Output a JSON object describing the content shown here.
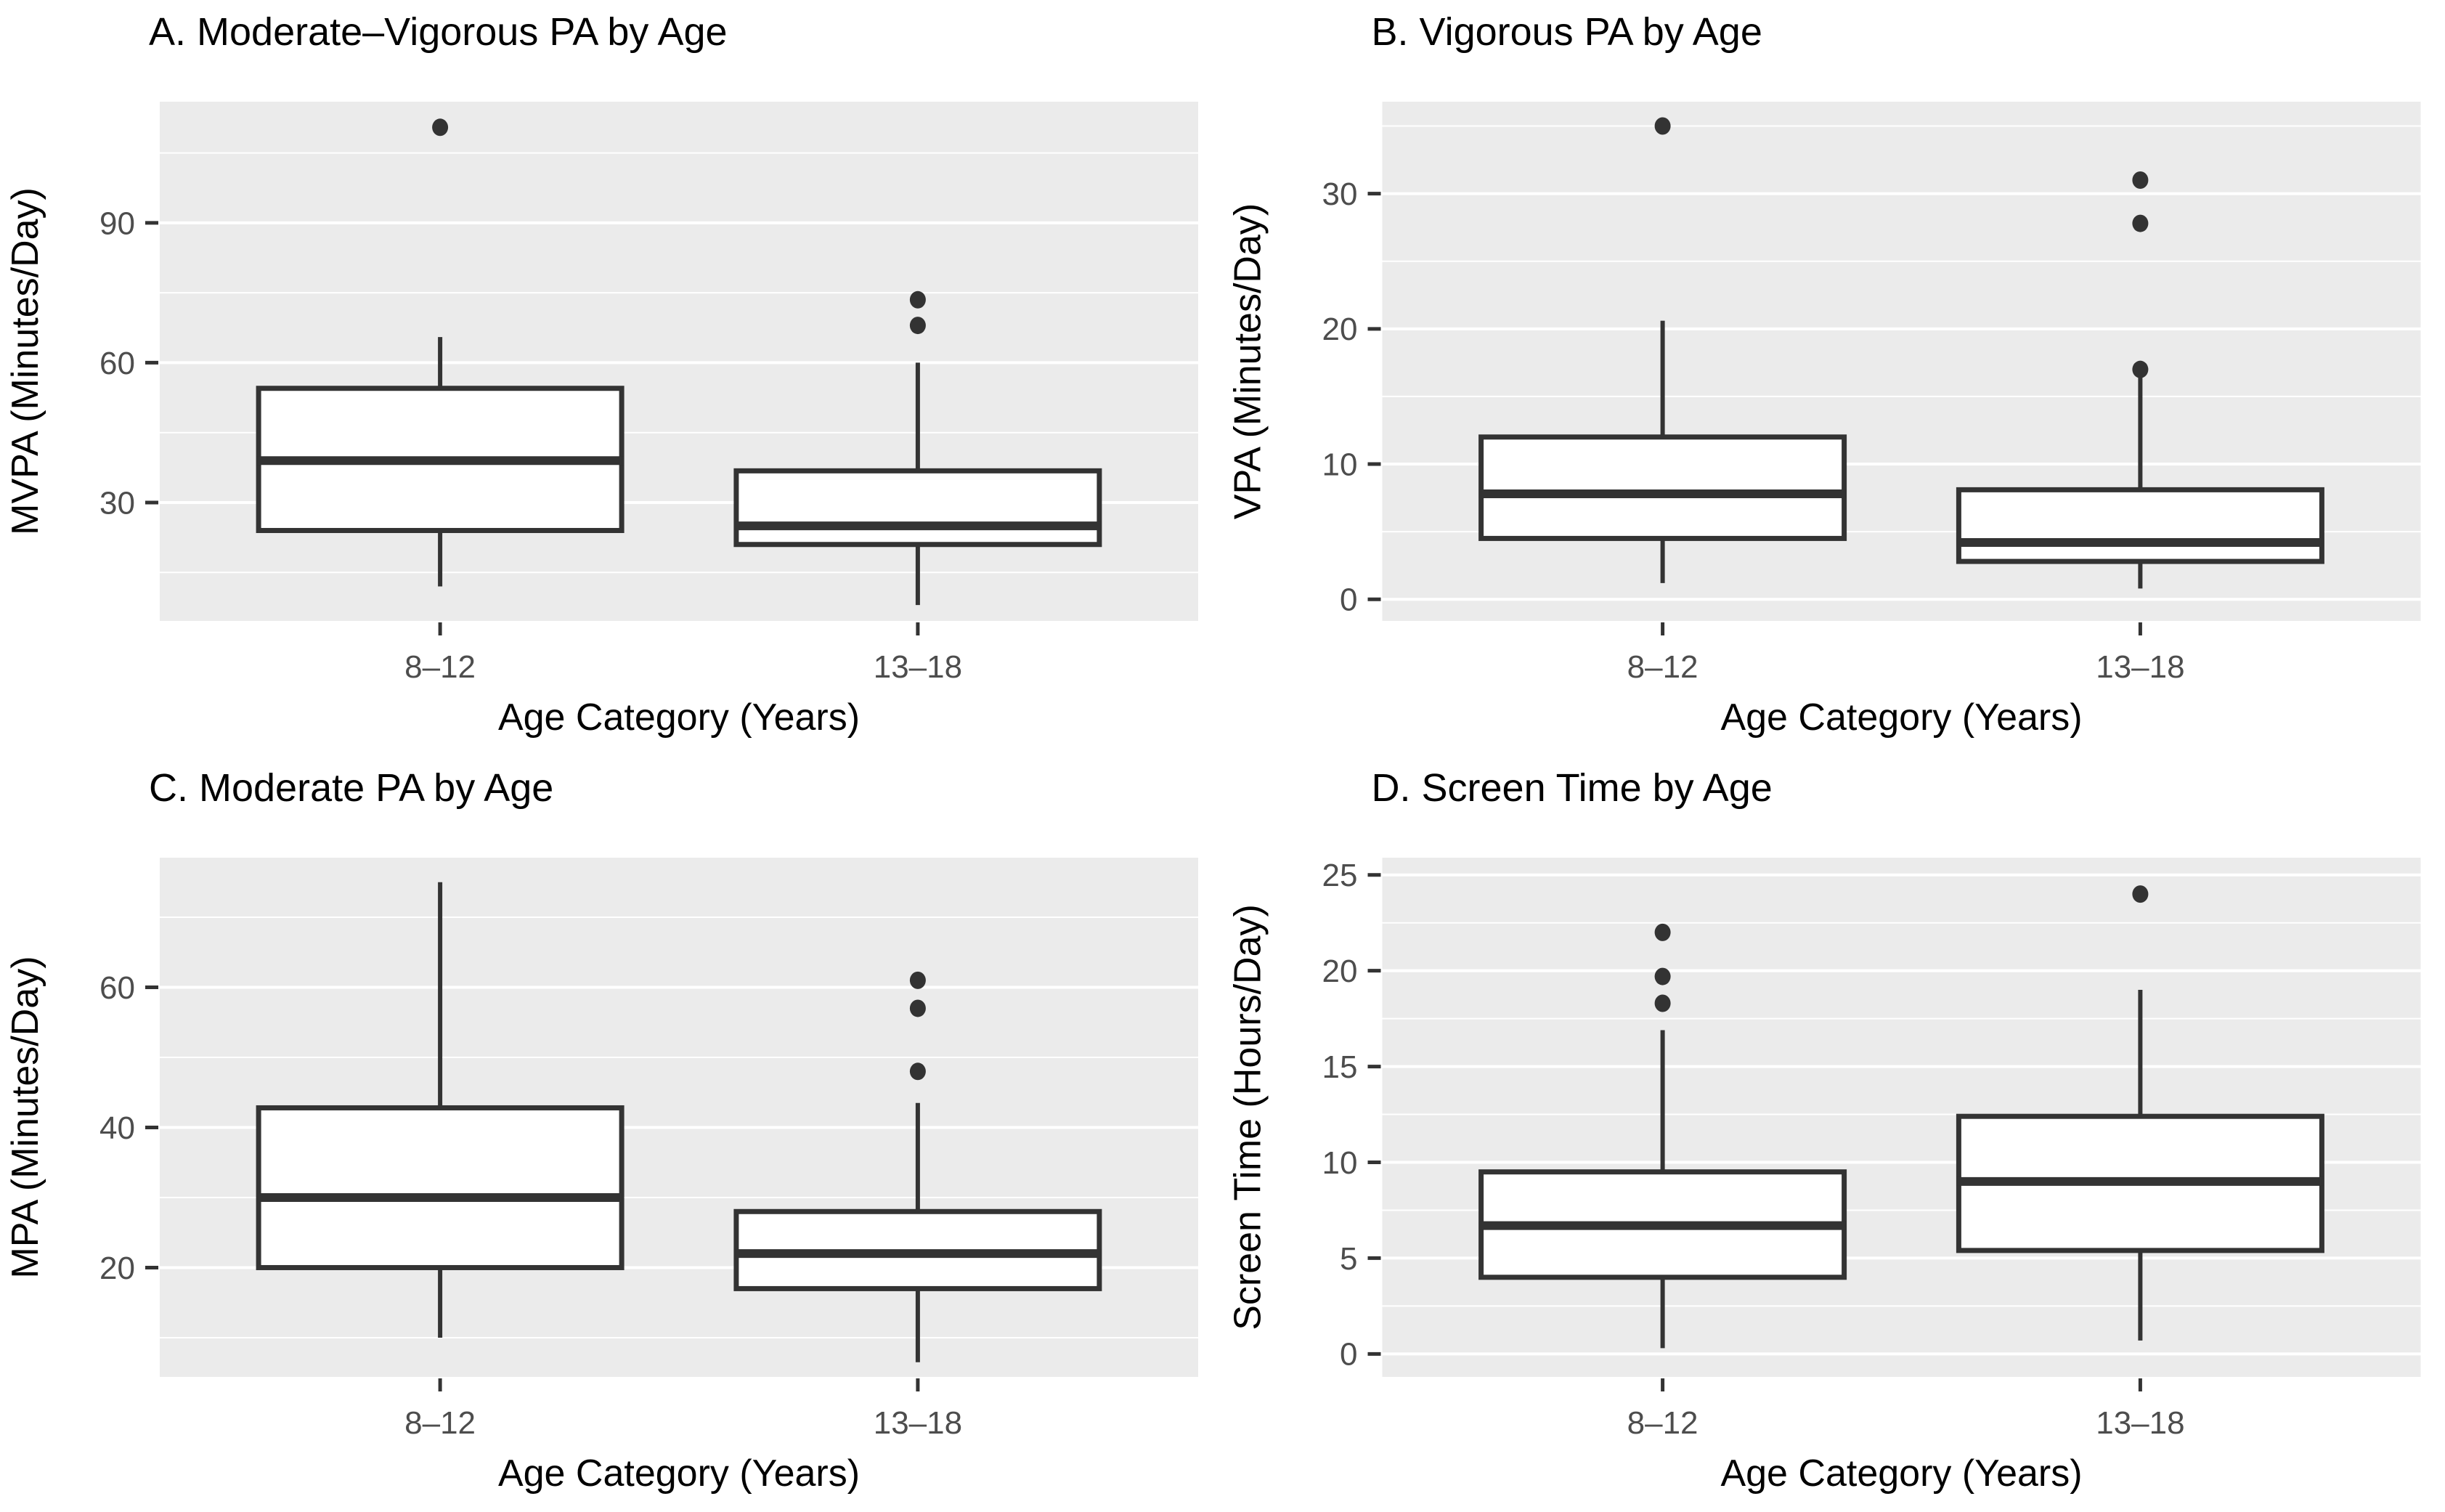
{
  "figure": {
    "background": "#ffffff",
    "x_axis_title": "Age Category (Years)"
  },
  "colors": {
    "panel_background": "#EBEBEB",
    "gridline": "#FFFFFF",
    "box_stroke": "#333333",
    "box_fill": "#FFFFFF",
    "outlier": "#333333",
    "tick_mark": "#333333",
    "tick_label": "#4D4D4D",
    "title_text": "#000000",
    "axis_title_text": "#000000"
  },
  "chart_data": [
    {
      "type": "boxplot",
      "panel": "A",
      "title": "A. Moderate–Vigorous PA by Age",
      "ylabel": "MVPA (Minutes/Day)",
      "xlabel": "Age Category (Years)",
      "categories": [
        "8–12",
        "13–18"
      ],
      "yticks": [
        30,
        60,
        90
      ],
      "yminor": [
        15,
        45,
        75,
        105
      ],
      "ylim": [
        4.6,
        116.0
      ],
      "grid": true,
      "series": [
        {
          "category": "8–12",
          "whislo": 12,
          "q1": 24,
          "med": 39,
          "q3": 54.5,
          "whishi": 65.5,
          "fliers": [
            110.5
          ]
        },
        {
          "category": "13–18",
          "whislo": 8,
          "q1": 21,
          "med": 25,
          "q3": 36.8,
          "whishi": 60,
          "fliers": [
            68,
            73.5
          ]
        }
      ]
    },
    {
      "type": "boxplot",
      "panel": "B",
      "title": "B. Vigorous PA by Age",
      "ylabel": "VPA (Minutes/Day)",
      "xlabel": "Age Category (Years)",
      "categories": [
        "8–12",
        "13–18"
      ],
      "yticks": [
        0,
        10,
        20,
        30
      ],
      "yminor": [
        5,
        15,
        25,
        35
      ],
      "ylim": [
        -1.6,
        36.8
      ],
      "grid": true,
      "series": [
        {
          "category": "8–12",
          "whislo": 1.2,
          "q1": 4.5,
          "med": 7.8,
          "q3": 12,
          "whishi": 20.6,
          "fliers": [
            35
          ]
        },
        {
          "category": "13–18",
          "whislo": 0.8,
          "q1": 2.8,
          "med": 4.2,
          "q3": 8.1,
          "whishi": 16.4,
          "fliers": [
            17,
            27.8,
            31
          ]
        }
      ]
    },
    {
      "type": "boxplot",
      "panel": "C",
      "title": "C. Moderate PA by Age",
      "ylabel": "MPA (Minutes/Day)",
      "xlabel": "Age Category (Years)",
      "categories": [
        "8–12",
        "13–18"
      ],
      "yticks": [
        20,
        40,
        60
      ],
      "yminor": [
        10,
        30,
        50,
        70
      ],
      "ylim": [
        4.4,
        78.5
      ],
      "grid": true,
      "series": [
        {
          "category": "8–12",
          "whislo": 10,
          "q1": 20,
          "med": 30,
          "q3": 42.8,
          "whishi": 75,
          "fliers": []
        },
        {
          "category": "13–18",
          "whislo": 6.5,
          "q1": 17,
          "med": 22,
          "q3": 28,
          "whishi": 43.5,
          "fliers": [
            48,
            57,
            61
          ]
        }
      ]
    },
    {
      "type": "boxplot",
      "panel": "D",
      "title": "D. Screen Time by Age",
      "ylabel": "Screen Time (Hours/Day)",
      "xlabel": "Age Category (Years)",
      "categories": [
        "8–12",
        "13–18"
      ],
      "yticks": [
        0,
        5,
        10,
        15,
        20,
        25
      ],
      "yminor": [
        2.5,
        7.5,
        12.5,
        17.5,
        22.5
      ],
      "ylim": [
        -1.2,
        25.9
      ],
      "grid": true,
      "series": [
        {
          "category": "8–12",
          "whislo": 0.3,
          "q1": 4,
          "med": 6.7,
          "q3": 9.5,
          "whishi": 16.9,
          "fliers": [
            18.3,
            19.7,
            22
          ]
        },
        {
          "category": "13–18",
          "whislo": 0.7,
          "q1": 5.4,
          "med": 9.0,
          "q3": 12.4,
          "whishi": 19,
          "fliers": [
            24
          ]
        }
      ]
    }
  ]
}
